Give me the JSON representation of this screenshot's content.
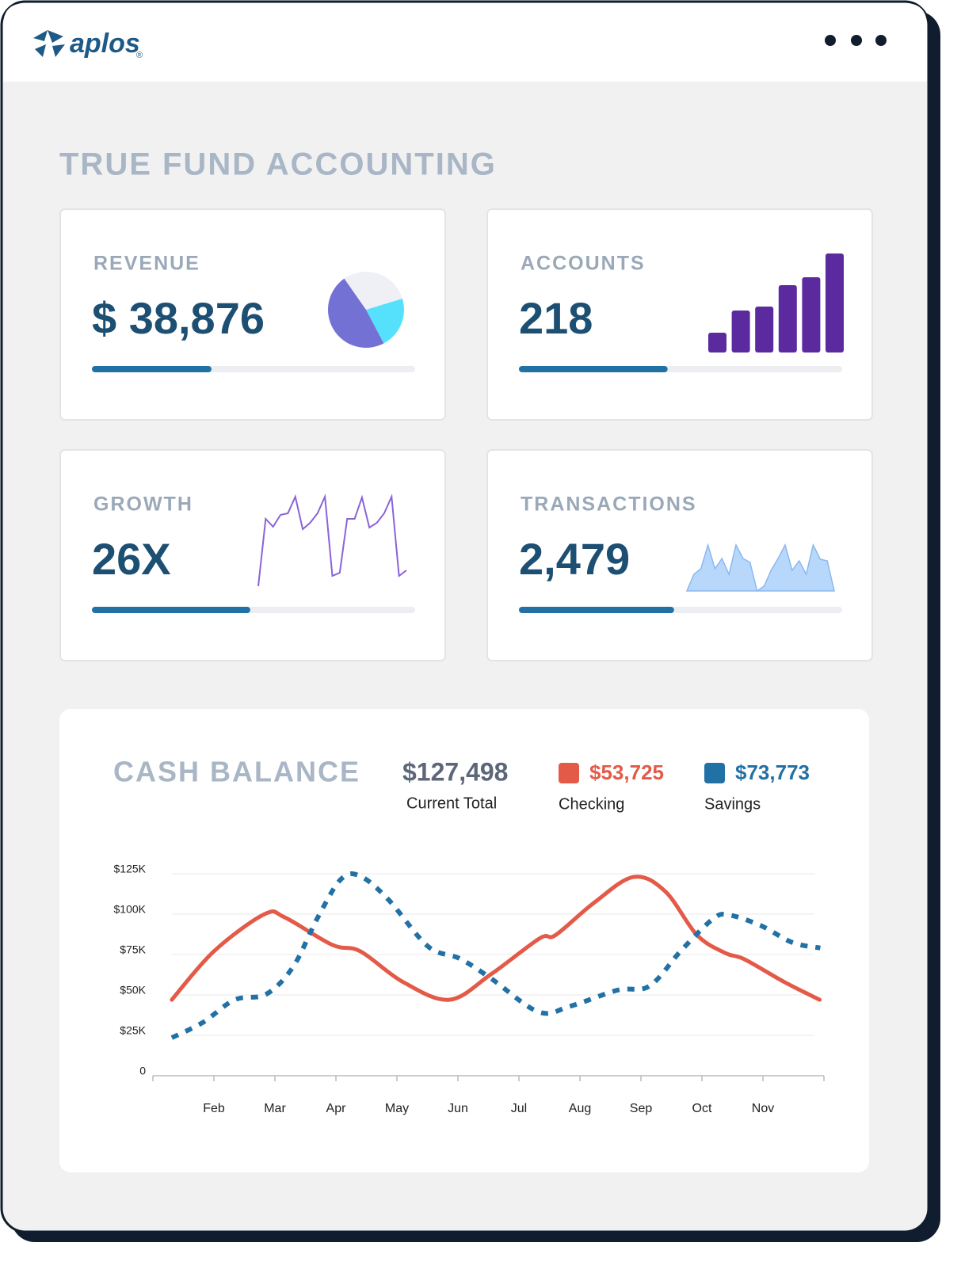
{
  "header": {
    "logo": "aplos",
    "logo_mark": "®"
  },
  "page_title": "TRUE FUND ACCOUNTING",
  "cards": [
    {
      "title": "REVENUE",
      "value": "$ 38,876",
      "progress": 0.37,
      "chart": {
        "type": "pie",
        "values": [
          30,
          22,
          48
        ],
        "colors": [
          "#eef0f6",
          "#55e1fc",
          "#7371d4"
        ]
      }
    },
    {
      "title": "ACCOUNTS",
      "value": "218",
      "progress": 0.46,
      "chart": {
        "type": "bar",
        "values": [
          25,
          53,
          58,
          85,
          95,
          125
        ],
        "ylim": [
          0,
          125
        ],
        "color": "#5b2a9e"
      }
    },
    {
      "title": "GROWTH",
      "value": "26X",
      "progress": 0.49,
      "chart": {
        "type": "line",
        "values": [
          0,
          85,
          75,
          90,
          92,
          113,
          72,
          80,
          92,
          113,
          13,
          17,
          85,
          85,
          112,
          74,
          80,
          92,
          113,
          13,
          20
        ],
        "ylim": [
          0,
          113
        ],
        "color": "#8b63d9"
      }
    },
    {
      "title": "TRANSACTIONS",
      "value": "2,479",
      "progress": 0.48,
      "chart": {
        "type": "area",
        "values": [
          0,
          21,
          28,
          58,
          28,
          41,
          21,
          58,
          41,
          36,
          0,
          6,
          26,
          41,
          58,
          26,
          38,
          21,
          58,
          40,
          38,
          0
        ],
        "ylim": [
          0,
          58
        ],
        "color": "#b8d8fb"
      }
    }
  ],
  "chart_data": {
    "type": "line",
    "title": "CASH BALANCE",
    "total": {
      "value": "$127,498",
      "caption": "Current Total"
    },
    "categories": [
      null,
      "Feb",
      "Mar",
      "Apr",
      "May",
      "Jun",
      "Jul",
      "Aug",
      "Sep",
      "Oct",
      "Nov",
      null
    ],
    "ylim": [
      0,
      125000
    ],
    "yticks": [
      0,
      {
        "value": 25000,
        "label": "$25K"
      },
      {
        "value": 50000,
        "label": "$50K"
      },
      {
        "value": 75000,
        "label": "$75K"
      },
      {
        "value": 100000,
        "label": "$100K"
      },
      {
        "value": 125000,
        "label": "$125K"
      }
    ],
    "grid": true,
    "series": [
      {
        "name": "Checking",
        "total": "$53,725",
        "color": "#e45a48",
        "dashed": false,
        "x": [
          0.31,
          1.0,
          1.83,
          2.16,
          2.94,
          3.4,
          4.1,
          4.86,
          5.55,
          6.34,
          6.6,
          7.23,
          7.88,
          8.4,
          8.92,
          9.38,
          9.7,
          10.35,
          10.93
        ],
        "values": [
          47000,
          77000,
          100000,
          98000,
          81000,
          77000,
          58000,
          47000,
          63000,
          85000,
          87000,
          107000,
          123000,
          114000,
          87000,
          76000,
          72000,
          58000,
          47000
        ]
      },
      {
        "name": "Savings",
        "total": "$73,773",
        "color": "#2271a5",
        "dashed": true,
        "x": [
          0.31,
          0.82,
          1.34,
          1.86,
          2.3,
          2.69,
          3.08,
          3.4,
          3.86,
          4.51,
          5.03,
          5.55,
          6.32,
          6.84,
          7.62,
          8.14,
          8.66,
          9.18,
          9.44,
          9.96,
          10.48,
          10.94
        ],
        "values": [
          23500,
          33000,
          47000,
          50500,
          67500,
          97000,
          121500,
          123500,
          109000,
          80000,
          72500,
          60000,
          39500,
          43000,
          53000,
          55500,
          77500,
          97000,
          99500,
          93000,
          82500,
          79000
        ]
      }
    ]
  }
}
